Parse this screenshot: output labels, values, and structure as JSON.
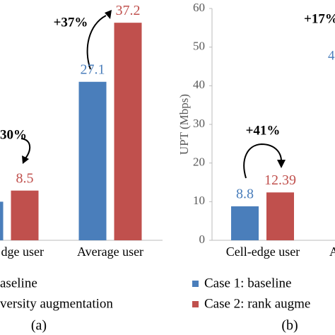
{
  "chart_data": [
    {
      "type": "bar",
      "categories": [
        "dge user",
        "Average user"
      ],
      "series": [
        {
          "name": "aseline",
          "color": "#4a7ebb",
          "values": [
            6.6,
            27.1
          ],
          "value_labels": [
            null,
            "27.1"
          ]
        },
        {
          "name": "versity augmentation",
          "color": "#c0504d",
          "values": [
            8.5,
            37.2
          ],
          "value_labels": [
            "8.5",
            "37.2"
          ]
        }
      ],
      "ylim": [
        0,
        40
      ],
      "annotations": [
        "30%",
        "+37%"
      ],
      "caption": "(a)"
    },
    {
      "type": "bar",
      "categories": [
        "Cell-edge user",
        "A"
      ],
      "series": [
        {
          "name": "Case 1: baseline",
          "color": "#4a7ebb",
          "values": [
            8.8,
            null
          ],
          "value_labels": [
            "8.8",
            null
          ]
        },
        {
          "name": "Case 2: rank augme",
          "color": "#c0504d",
          "values": [
            12.39,
            null
          ],
          "value_labels": [
            "12.39",
            null
          ]
        }
      ],
      "ylim": [
        0,
        60
      ],
      "yticks": [
        0,
        10,
        20,
        30,
        40,
        50,
        60
      ],
      "ylabel": "UPT (Mbps)",
      "annotations": [
        "+41%",
        "+17%",
        "4"
      ],
      "caption": "(b)"
    }
  ]
}
